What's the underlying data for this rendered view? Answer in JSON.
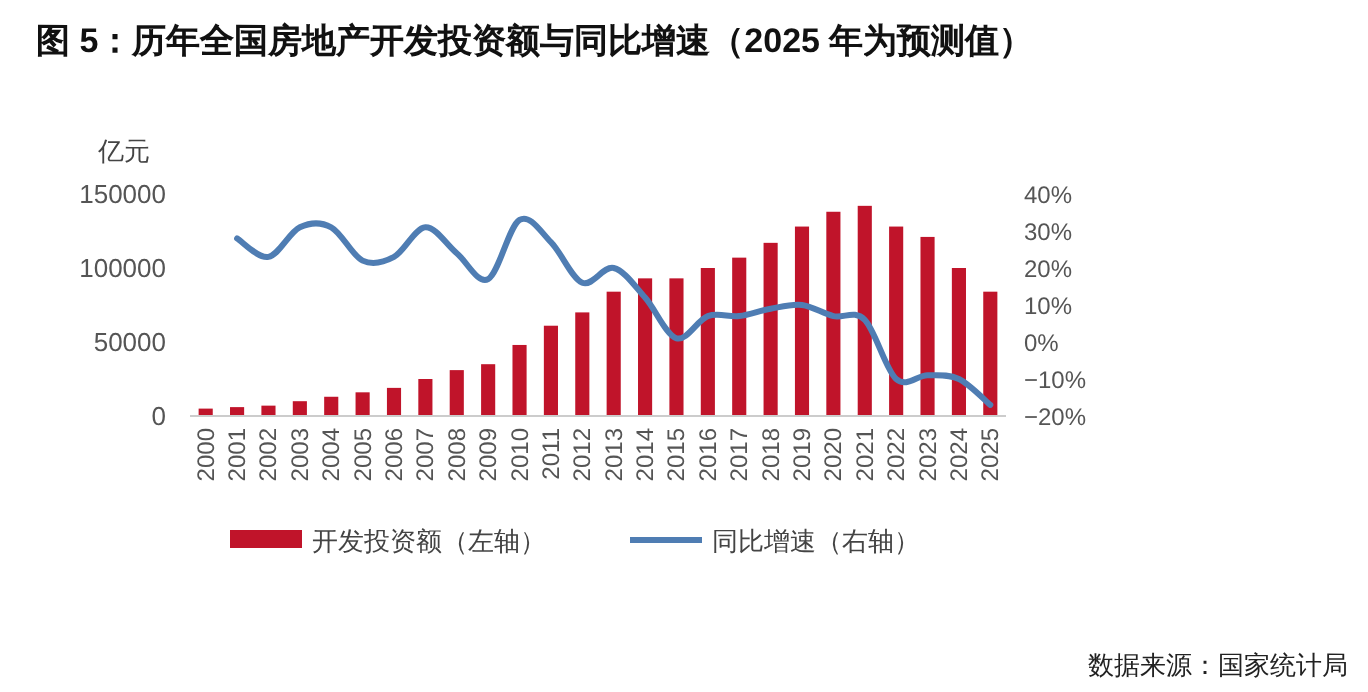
{
  "chart_data": {
    "type": "bar",
    "title": "图 5：历年全国房地产开发投资额与同比增速（2025 年为预测值）",
    "ylabel": "亿元",
    "categories": [
      "2000",
      "2001",
      "2002",
      "2003",
      "2004",
      "2005",
      "2006",
      "2007",
      "2008",
      "2009",
      "2010",
      "2011",
      "2012",
      "2013",
      "2014",
      "2015",
      "2016",
      "2017",
      "2018",
      "2019",
      "2020",
      "2021",
      "2022",
      "2023",
      "2024",
      "2025"
    ],
    "series": [
      {
        "name": "开发投资额（左轴）",
        "color": "#c0142a",
        "values": [
          5000,
          6000,
          7000,
          10000,
          13000,
          16000,
          19000,
          25000,
          31000,
          35000,
          48000,
          61000,
          70000,
          84000,
          93000,
          93000,
          100000,
          107000,
          117000,
          128000,
          138000,
          142000,
          128000,
          121000,
          100000,
          84000
        ]
      },
      {
        "name": "同比增速（右轴）",
        "type": "line",
        "axis": "y2",
        "color": "#4f7db3",
        "values": [
          null,
          28,
          23,
          31,
          31,
          22,
          23,
          31,
          24,
          17,
          33,
          27,
          16,
          20,
          12,
          1,
          7,
          7,
          9,
          10,
          7,
          6,
          -10,
          -9,
          -10,
          -17
        ]
      }
    ],
    "ylim": [
      0,
      150000
    ],
    "yticks": [
      0,
      50000,
      100000,
      150000
    ],
    "y2lim": [
      -20,
      40
    ],
    "y2ticks": [
      {
        "value": -20,
        "label": "−20%"
      },
      {
        "value": -10,
        "label": "−10%"
      },
      {
        "value": 0,
        "label": "0%"
      },
      {
        "value": 10,
        "label": "10%"
      },
      {
        "value": 20,
        "label": "20%"
      },
      {
        "value": 30,
        "label": "30%"
      },
      {
        "value": 40,
        "label": "40%"
      }
    ],
    "legend": "bottom",
    "grid": false,
    "annotations": [
      "数据来源：国家统计局"
    ]
  }
}
